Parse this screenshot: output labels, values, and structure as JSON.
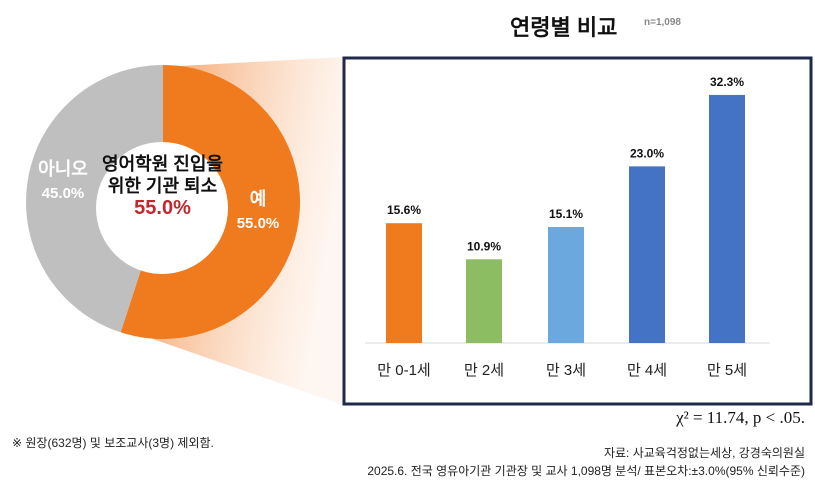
{
  "title": "연령별 비교",
  "n_label": "n=1,098",
  "statistic": "χ² = 11.74, p < .05.",
  "footnote": "※ 원장(632명) 및 보조교사(3명) 제외함.",
  "source_line1": "자료: 사교육걱정없는세상, 강경숙의원실",
  "source_line2": "2025.6. 전국 영유아기관 기관장 및 교사 1,098명 분석/ 표본오차:±3.0%(95% 신뢰수준)",
  "chart_data": [
    {
      "type": "pie",
      "donut": true,
      "center_label": "영어학원 진입을 위한 기관 퇴소",
      "center_value": "55.0%",
      "categories": [
        "예",
        "아니오"
      ],
      "values": [
        55.0,
        45.0
      ],
      "value_labels": [
        "55.0%",
        "45.0%"
      ],
      "colors": [
        "#f07a1e",
        "#bfbfbf"
      ]
    },
    {
      "type": "bar",
      "title": "연령별 비교",
      "categories": [
        "만 0-1세",
        "만 2세",
        "만 3세",
        "만 4세",
        "만 5세"
      ],
      "values": [
        15.6,
        10.9,
        15.1,
        23.0,
        32.3
      ],
      "value_labels": [
        "15.6%",
        "10.9%",
        "15.1%",
        "23.0%",
        "32.3%"
      ],
      "colors": [
        "#f07a1e",
        "#8dbd63",
        "#6aa8de",
        "#4472c4",
        "#4472c4"
      ],
      "grid": false
    }
  ]
}
